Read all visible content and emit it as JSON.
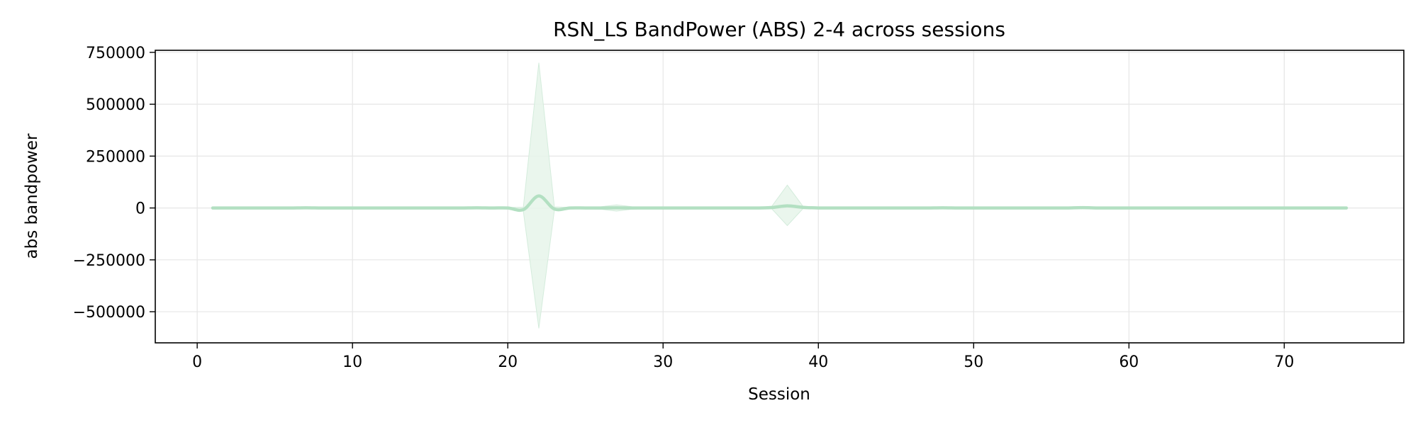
{
  "chart_data": {
    "type": "line",
    "title": "RSN_LS BandPower (ABS) 2-4 across sessions",
    "xlabel": "Session",
    "ylabel": "abs bandpower",
    "xlim": [
      -2.7,
      77.7
    ],
    "ylim": [
      -650000,
      760000
    ],
    "xticks": [
      0,
      10,
      20,
      30,
      40,
      50,
      60,
      70
    ],
    "xtick_labels": [
      "0",
      "10",
      "20",
      "30",
      "40",
      "50",
      "60",
      "70"
    ],
    "yticks": [
      750000,
      500000,
      250000,
      0,
      -250000,
      -500000
    ],
    "ytick_labels": [
      "750000",
      "500000",
      "250000",
      "0",
      "−250000",
      "−500000"
    ],
    "grid": true,
    "legend": "none",
    "series": [
      {
        "line_color": "#b3e0c2",
        "band_color": "#e6f4ea",
        "x": [
          1,
          2,
          3,
          4,
          5,
          6,
          7,
          8,
          9,
          10,
          11,
          12,
          13,
          14,
          15,
          16,
          17,
          18,
          19,
          20,
          21,
          22,
          23,
          24,
          25,
          26,
          27,
          28,
          29,
          30,
          31,
          32,
          33,
          34,
          35,
          36,
          37,
          38,
          39,
          40,
          41,
          42,
          43,
          44,
          45,
          46,
          47,
          48,
          49,
          50,
          51,
          52,
          53,
          54,
          55,
          56,
          57,
          58,
          59,
          60,
          61,
          62,
          63,
          64,
          65,
          66,
          67,
          68,
          69,
          70,
          71,
          72,
          73,
          74
        ],
        "values": [
          0,
          0,
          0,
          0,
          0,
          0,
          1000,
          0,
          0,
          0,
          0,
          0,
          0,
          0,
          0,
          0,
          0,
          1000,
          0,
          0,
          -8000,
          58000,
          -5000,
          0,
          0,
          0,
          1000,
          0,
          0,
          0,
          0,
          0,
          0,
          0,
          0,
          0,
          2000,
          10000,
          3000,
          0,
          0,
          0,
          0,
          0,
          0,
          0,
          0,
          1000,
          0,
          0,
          0,
          0,
          0,
          0,
          0,
          0,
          1500,
          0,
          0,
          0,
          0,
          0,
          0,
          0,
          0,
          0,
          0,
          0,
          0,
          0,
          0,
          0,
          0,
          0
        ],
        "band_upper": [
          3000,
          3000,
          3000,
          3000,
          3000,
          3000,
          4000,
          3000,
          3000,
          3000,
          3000,
          3000,
          3000,
          3000,
          3000,
          3000,
          3000,
          4000,
          3000,
          3000,
          3000,
          700000,
          5000,
          3000,
          5000,
          6000,
          15000,
          6000,
          3000,
          3000,
          3000,
          3000,
          3000,
          3000,
          3000,
          3000,
          8000,
          110000,
          9000,
          3000,
          3000,
          3000,
          3000,
          3000,
          3000,
          3000,
          3000,
          4000,
          3000,
          3000,
          3000,
          3000,
          3000,
          3000,
          3000,
          3000,
          5000,
          3000,
          3000,
          3000,
          3000,
          3000,
          3000,
          3000,
          3000,
          3000,
          3000,
          3000,
          3000,
          3000,
          3000,
          3000,
          3000,
          3000
        ],
        "band_lower": [
          -3000,
          -3000,
          -3000,
          -3000,
          -3000,
          -3000,
          -2000,
          -3000,
          -3000,
          -3000,
          -3000,
          -3000,
          -3000,
          -3000,
          -3000,
          -3000,
          -3000,
          -2000,
          -3000,
          -3000,
          -15000,
          -580000,
          -12000,
          -3000,
          -5000,
          -6000,
          -15000,
          -6000,
          -3000,
          -3000,
          -3000,
          -3000,
          -3000,
          -3000,
          -3000,
          -3000,
          -4000,
          -85000,
          -4000,
          -3000,
          -3000,
          -3000,
          -3000,
          -3000,
          -3000,
          -3000,
          -3000,
          -2000,
          -3000,
          -3000,
          -3000,
          -3000,
          -3000,
          -3000,
          -3000,
          -3000,
          -2000,
          -3000,
          -3000,
          -3000,
          -3000,
          -3000,
          -3000,
          -3000,
          -3000,
          -3000,
          -3000,
          -3000,
          -3000,
          -3000,
          -3000,
          -3000,
          -3000,
          -3000
        ]
      }
    ]
  }
}
